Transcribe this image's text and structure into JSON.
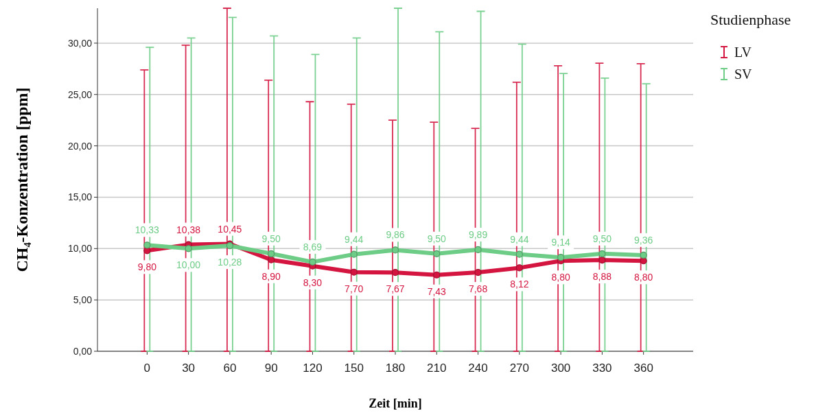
{
  "chart_data": {
    "type": "line",
    "xlabel": "Zeit [min]",
    "ylabel": "CH₄-Konzentration [ppm]",
    "legend_title": "Studienphase",
    "legend": "top right",
    "grid": "y",
    "marker": "circle",
    "line_style": "solid",
    "categories": [
      "0",
      "30",
      "60",
      "90",
      "120",
      "150",
      "180",
      "210",
      "240",
      "270",
      "300",
      "330",
      "360"
    ],
    "ylim": [
      0,
      33.4
    ],
    "yticks": [
      {
        "value": 0,
        "label": "0,00"
      },
      {
        "value": 5,
        "label": "5,00"
      },
      {
        "value": 10,
        "label": "10,00"
      },
      {
        "value": 15,
        "label": "15,00"
      },
      {
        "value": 20,
        "label": "20,00"
      },
      {
        "value": 25,
        "label": "25,00"
      },
      {
        "value": 30,
        "label": "30,00"
      }
    ],
    "series": [
      {
        "name": "LV",
        "color": "#d4153f",
        "values": [
          9.8,
          10.38,
          10.45,
          8.9,
          8.3,
          7.7,
          7.67,
          7.43,
          7.68,
          8.12,
          8.8,
          8.88,
          8.8
        ],
        "value_labels": [
          "9,80",
          "10,38",
          "10,45",
          "8,90",
          "8,30",
          "7,70",
          "7,67",
          "7,43",
          "7,68",
          "8,12",
          "8,80",
          "8,88",
          "8,80"
        ],
        "errors": [
          [
            0,
            27.4
          ],
          [
            0,
            29.8
          ],
          [
            0,
            33.4
          ],
          [
            0,
            26.4
          ],
          [
            0,
            24.3
          ],
          [
            0,
            24.05
          ],
          [
            0,
            22.5
          ],
          [
            0,
            22.3
          ],
          [
            0,
            21.7
          ],
          [
            0,
            26.2
          ],
          [
            0,
            27.8
          ],
          [
            0,
            28.05
          ],
          [
            0,
            28
          ]
        ]
      },
      {
        "name": "SV",
        "color": "#6dcc86",
        "values": [
          10.33,
          10,
          10.28,
          9.5,
          8.69,
          9.44,
          9.86,
          9.5,
          9.89,
          9.44,
          9.14,
          9.5,
          9.36
        ],
        "value_labels": [
          "10,33",
          "10,00",
          "10,28",
          "9,50",
          "8,69",
          "9,44",
          "9,86",
          "9,50",
          "9,89",
          "9,44",
          "9,14",
          "9,50",
          "9,36"
        ],
        "errors": [
          [
            0,
            29.6
          ],
          [
            0,
            30.5
          ],
          [
            0,
            32.5
          ],
          [
            0,
            30.7
          ],
          [
            0,
            28.9
          ],
          [
            0,
            30.5
          ],
          [
            0,
            33.4
          ],
          [
            0,
            31.1
          ],
          [
            0,
            33.1
          ],
          [
            0,
            29.9
          ],
          [
            0,
            27.05
          ],
          [
            0,
            26.6
          ],
          [
            0,
            26.05
          ]
        ]
      }
    ]
  }
}
